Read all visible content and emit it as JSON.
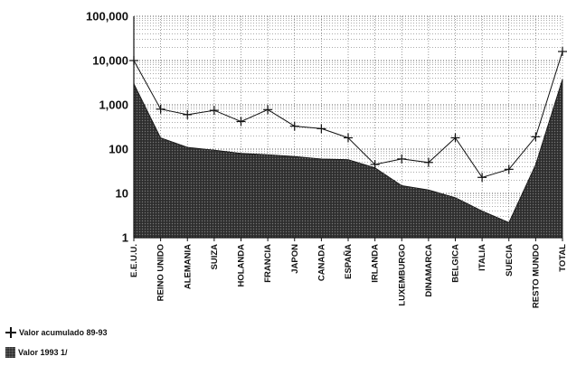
{
  "chart_data": {
    "type": "line",
    "categories": [
      "E.E.U.U.",
      "REINO UNIDO",
      "ALEMANIA",
      "SUIZA",
      "HOLANDA",
      "FRANCIA",
      "JAPON",
      "CANADA",
      "ESPAÑA",
      "IRLANDA",
      "LUXEMBURGO",
      "DINAMARCA",
      "BELGICA",
      "ITALIA",
      "SUECIA",
      "RESTO MUNDO",
      "TOTAL"
    ],
    "series": [
      {
        "name": "Valor acumulado 89-93",
        "render": "line-with-plus-markers",
        "values": [
          10000,
          800,
          600,
          750,
          420,
          780,
          330,
          290,
          180,
          45,
          60,
          50,
          180,
          23,
          35,
          190,
          16000
        ]
      },
      {
        "name": "Valor 1993 1/",
        "render": "filled-area",
        "values": [
          3000,
          180,
          110,
          95,
          80,
          75,
          68,
          60,
          58,
          38,
          15,
          12,
          8,
          4,
          2.2,
          45,
          3800
        ]
      }
    ],
    "y_scale": "log",
    "ylim": [
      1,
      100000
    ],
    "yticks": [
      "1",
      "10",
      "100",
      "1,000",
      "10,000",
      "100,000"
    ],
    "grid": "dotted horizontal and vertical",
    "legend_position": "bottom-left"
  },
  "legend": {
    "line_label": "Valor acumulado 89-93",
    "area_label": "Valor 1993 1/"
  }
}
